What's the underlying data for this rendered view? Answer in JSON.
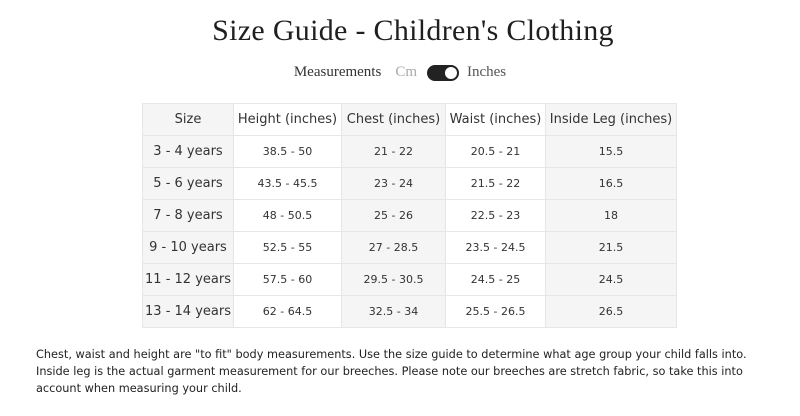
{
  "title": "Size Guide - Children's Clothing",
  "units": {
    "label": "Measurements",
    "option_cm": "Cm",
    "option_inches": "Inches",
    "selected": "Inches"
  },
  "table": {
    "headers": [
      "Size",
      "Height (inches)",
      "Chest (inches)",
      "Waist (inches)",
      "Inside Leg (inches)"
    ],
    "rows": [
      [
        "3 - 4 years",
        "38.5 - 50",
        "21 - 22",
        "20.5 - 21",
        "15.5"
      ],
      [
        "5 - 6 years",
        "43.5 - 45.5",
        "23 - 24",
        "21.5 - 22",
        "16.5"
      ],
      [
        "7 - 8 years",
        "48 - 50.5",
        "25 - 26",
        "22.5 - 23",
        "18"
      ],
      [
        "9 - 10 years",
        "52.5 - 55",
        "27 - 28.5",
        "23.5 - 24.5",
        "21.5"
      ],
      [
        "11 - 12 years",
        "57.5 - 60",
        "29.5 - 30.5",
        "24.5 - 25",
        "24.5"
      ],
      [
        "13 - 14 years",
        "62 - 64.5",
        "32.5 - 34",
        "25.5 - 26.5",
        "26.5"
      ]
    ]
  },
  "note": "Chest, waist and height are \"to fit\" body measurements. Use the size guide to determine what age group your child falls into. Inside leg is the actual garment measurement for our breeches. Please note our breeches are stretch fabric, so take this into account when measuring your child."
}
